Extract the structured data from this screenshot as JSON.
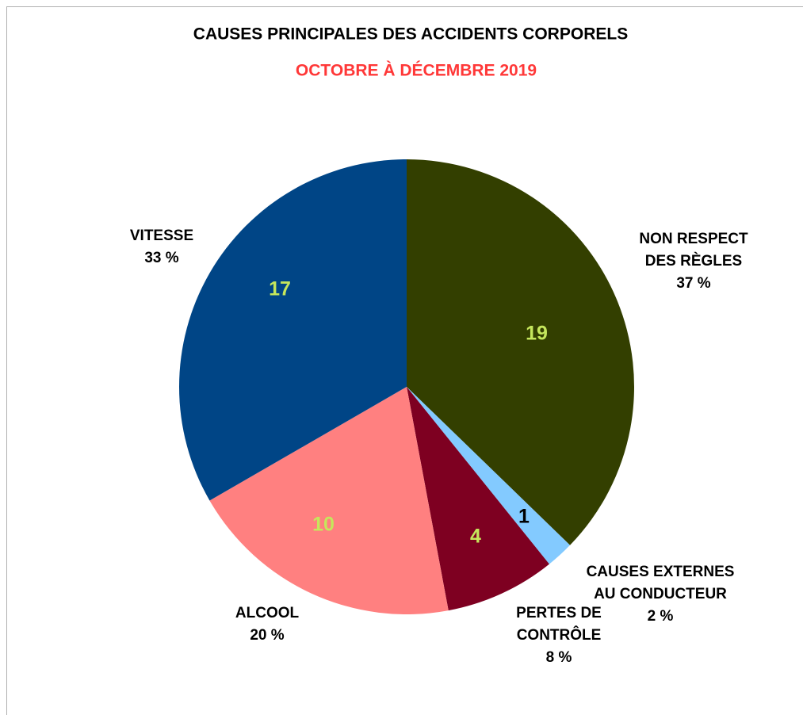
{
  "chart_data": {
    "type": "pie",
    "title": "CAUSES PRINCIPALES DES ACCIDENTS CORPORELS",
    "subtitle": "OCTOBRE À DÉCEMBRE 2019",
    "categories": [
      [
        "NON RESPECT",
        "DES RÈGLES"
      ],
      [
        "CAUSES EXTERNES",
        "AU CONDUCTEUR"
      ],
      [
        "PERTES DE",
        "CONTRÔLE"
      ],
      [
        "ALCOOL"
      ],
      [
        "VITESSE"
      ]
    ],
    "values": [
      19,
      1,
      4,
      10,
      17
    ],
    "percent_labels": [
      "37 %",
      "2 %",
      "8 %",
      "20 %",
      "33 %"
    ],
    "colors": [
      "#333f00",
      "#83caff",
      "#7e0021",
      "#ff8080",
      "#004586"
    ],
    "label_colors": [
      "#c5e65c",
      "#000000",
      "#c5e65c",
      "#c5e65c",
      "#c5e65c"
    ]
  }
}
